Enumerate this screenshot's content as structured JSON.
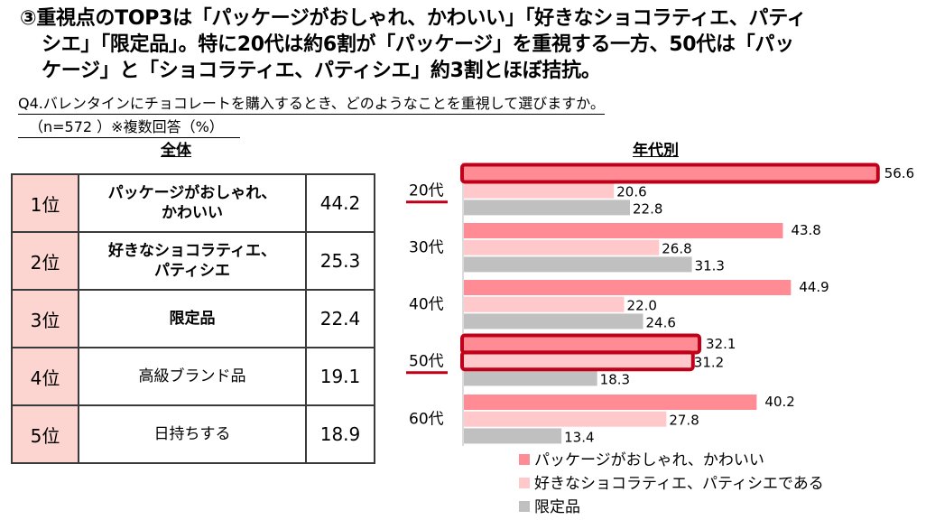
{
  "headline": {
    "lines": [
      "③重視点のTOP3は「パッケージがおしゃれ、かわいい」「好きなショコラティエ、パティ",
      "シエ」「限定品」。特に20代は約6割が「パッケージ」を重視する一方、50代は「パッ",
      "ケージ」と「ショコラティエ、パティシエ」約3割とほぼ拮抗。"
    ]
  },
  "question": "Q4.バレンタインにチョコレートを購入するとき、どのようなことを重視して選びますか。",
  "sample_note": "（n=572 ）※複数回答（%）",
  "overall": {
    "title": "全体",
    "rows": [
      {
        "rank": "1位",
        "item_line1": "パッケージがおしゃれ、",
        "item_line2": "かわいい",
        "value": "44.2",
        "bold": true
      },
      {
        "rank": "2位",
        "item_line1": "好きなショコラティエ、",
        "item_line2": "パティシエ",
        "value": "25.3",
        "bold": true
      },
      {
        "rank": "3位",
        "item_line1": "限定品",
        "item_line2": "",
        "value": "22.4",
        "bold": true
      },
      {
        "rank": "4位",
        "item_line1": "高級ブランド品",
        "item_line2": "",
        "value": "19.1",
        "bold": false
      },
      {
        "rank": "5位",
        "item_line1": "日持ちする",
        "item_line2": "",
        "value": "18.9",
        "bold": false
      }
    ]
  },
  "colors": {
    "series_package": "#ff8c94",
    "series_chocolatier": "#ffc9cb",
    "series_limited": "#c0c0c0",
    "highlight": "#c00018",
    "rank_cell": "#fdd5d0"
  },
  "chart_data": {
    "type": "bar",
    "orientation": "horizontal",
    "title": "年代別",
    "xlabel": "",
    "ylabel": "",
    "xlim": [
      0,
      60
    ],
    "grid": false,
    "legend_position": "bottom",
    "categories": [
      "20代",
      "30代",
      "40代",
      "50代",
      "60代"
    ],
    "series": [
      {
        "name": "パッケージがおしゃれ、かわいい",
        "values": [
          56.6,
          43.8,
          44.9,
          32.1,
          40.2
        ]
      },
      {
        "name": "好きなショコラティエ、パティシエである",
        "values": [
          20.6,
          26.8,
          22.0,
          31.2,
          27.8
        ]
      },
      {
        "name": "限定品",
        "values": [
          22.8,
          31.3,
          24.6,
          18.3,
          13.4
        ]
      }
    ],
    "value_labels": [
      [
        "56.6",
        "20.6",
        "22.8"
      ],
      [
        "43.8",
        "26.8",
        "31.3"
      ],
      [
        "44.9",
        "22.0",
        "24.6"
      ],
      [
        "32.1",
        "31.2",
        "18.3"
      ],
      [
        "40.2",
        "27.8",
        "13.4"
      ]
    ],
    "highlighted_categories": [
      "20代",
      "50代"
    ],
    "highlighted_bars": [
      {
        "category": "20代",
        "series": 0
      },
      {
        "category": "50代",
        "series": 0
      },
      {
        "category": "50代",
        "series": 1
      }
    ]
  }
}
